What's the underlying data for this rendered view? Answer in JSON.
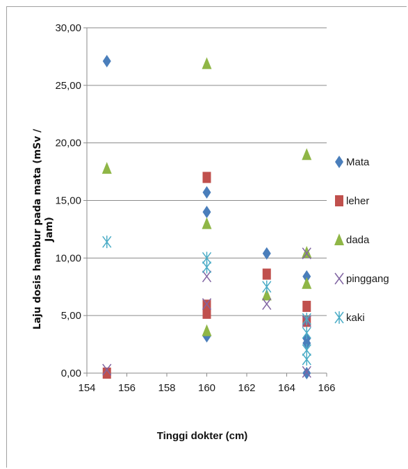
{
  "chart_data": {
    "type": "scatter",
    "title": "",
    "xlabel": "Tinggi dokter (cm)",
    "ylabel_lines": [
      "Laju dosis hambur pada mata (mSv /",
      "Jam)"
    ],
    "xlim": [
      154,
      166
    ],
    "ylim": [
      0,
      30
    ],
    "x_ticks": [
      "154",
      "156",
      "158",
      "160",
      "162",
      "164",
      "166"
    ],
    "y_ticks": [
      "0,00",
      "5,00",
      "10,00",
      "15,00",
      "20,00",
      "25,00",
      "30,00"
    ],
    "grid": "horizontal",
    "legend_position": "right",
    "series": [
      {
        "name": "Mata",
        "marker": "diamond",
        "color": "#4a7ebb",
        "points": [
          [
            155,
            27.1
          ],
          [
            160,
            15.7
          ],
          [
            160,
            14.0
          ],
          [
            160,
            3.2
          ],
          [
            163,
            10.4
          ],
          [
            165,
            8.4
          ],
          [
            165,
            3.0
          ],
          [
            165,
            2.6
          ],
          [
            165,
            0.0
          ]
        ]
      },
      {
        "name": "leher",
        "marker": "square",
        "color": "#c0504d",
        "points": [
          [
            155,
            0.0
          ],
          [
            160,
            17.0
          ],
          [
            160,
            5.9
          ],
          [
            160,
            5.2
          ],
          [
            163,
            8.6
          ],
          [
            165,
            5.8
          ],
          [
            165,
            4.5
          ]
        ]
      },
      {
        "name": "dada",
        "marker": "triangle",
        "color": "#8fb646",
        "points": [
          [
            155,
            17.8
          ],
          [
            160,
            26.9
          ],
          [
            160,
            13.0
          ],
          [
            160,
            3.7
          ],
          [
            163,
            6.8
          ],
          [
            165,
            19.0
          ],
          [
            165,
            10.5
          ],
          [
            165,
            7.8
          ]
        ]
      },
      {
        "name": "pinggang",
        "marker": "x",
        "color": "#8064a2",
        "points": [
          [
            155,
            0.3
          ],
          [
            160,
            8.4
          ],
          [
            160,
            6.0
          ],
          [
            163,
            6.0
          ],
          [
            165,
            10.4
          ],
          [
            165,
            4.5
          ],
          [
            165,
            0.1
          ]
        ]
      },
      {
        "name": "kaki",
        "marker": "star",
        "color": "#4bacc6",
        "points": [
          [
            155,
            11.4
          ],
          [
            160,
            10.0
          ],
          [
            160,
            9.2
          ],
          [
            163,
            7.5
          ],
          [
            165,
            4.7
          ],
          [
            165,
            3.5
          ],
          [
            165,
            2.0
          ],
          [
            165,
            1.2
          ]
        ]
      }
    ]
  }
}
